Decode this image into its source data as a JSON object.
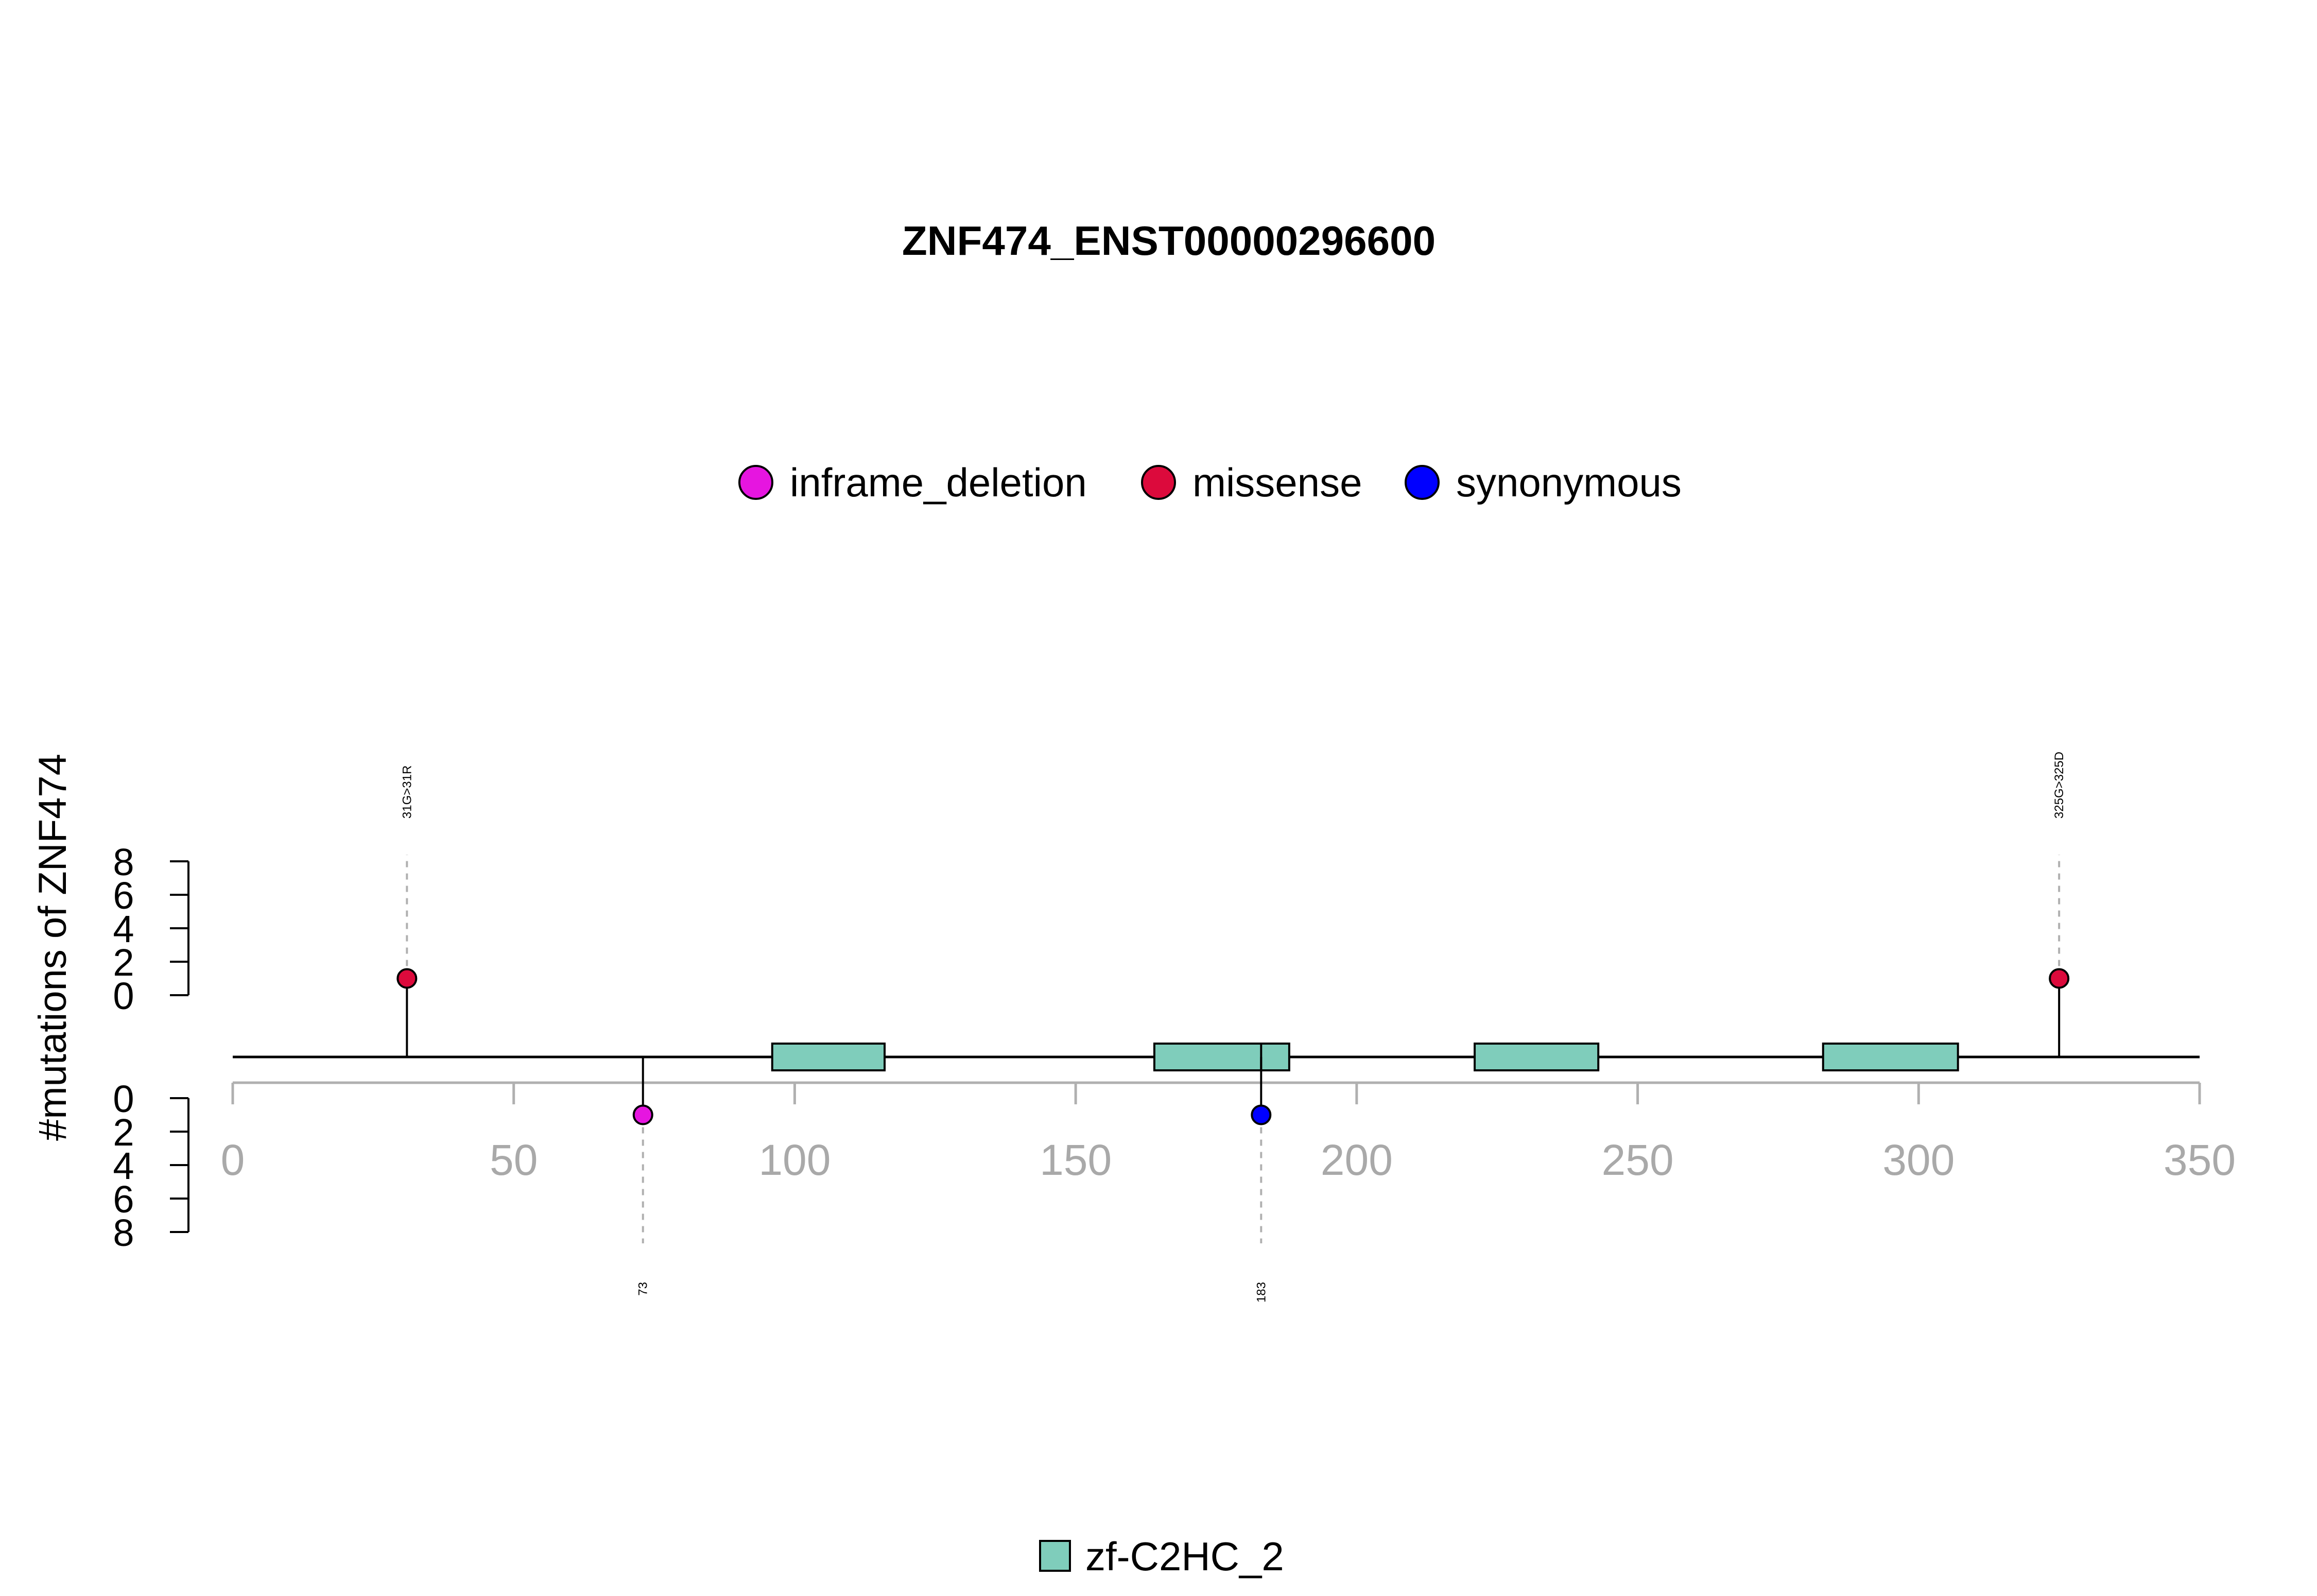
{
  "chart_data": {
    "type": "lollipop",
    "title": "ZNF474_ENST00000296600",
    "ylabel": "#mutations of ZNF474",
    "xlim": [
      0,
      350
    ],
    "x_ticks": [
      0,
      50,
      100,
      150,
      200,
      250,
      300,
      350
    ],
    "y_ticks_top": [
      0,
      2,
      4,
      6,
      8
    ],
    "y_ticks_bottom": [
      0,
      2,
      4,
      6,
      8
    ],
    "ylim": [
      0,
      8
    ],
    "legend_position": "top-center",
    "mutation_types": [
      {
        "name": "inframe_deletion",
        "color": "#E615E0"
      },
      {
        "name": "missense",
        "color": "#DC0A3C"
      },
      {
        "name": "synonymous",
        "color": "#0000FF"
      }
    ],
    "mutations": [
      {
        "position": 31,
        "count": 1,
        "type": "missense",
        "side": "top",
        "label": "31G>31R"
      },
      {
        "position": 73,
        "count": 1,
        "type": "inframe_deletion",
        "side": "bottom",
        "label": "73"
      },
      {
        "position": 183,
        "count": 1,
        "type": "synonymous",
        "side": "bottom",
        "label": "183"
      },
      {
        "position": 325,
        "count": 1,
        "type": "missense",
        "side": "top",
        "label": "325G>325D"
      }
    ],
    "domains": [
      {
        "name": "zf-C2HC_2",
        "start": 96,
        "end": 116
      },
      {
        "name": "zf-C2HC_2",
        "start": 164,
        "end": 188
      },
      {
        "name": "zf-C2HC_2",
        "start": 221,
        "end": 243
      },
      {
        "name": "zf-C2HC_2",
        "start": 283,
        "end": 307
      }
    ],
    "domain_legend": [
      {
        "name": "zf-C2HC_2",
        "color": "#7FCDBB"
      }
    ]
  }
}
